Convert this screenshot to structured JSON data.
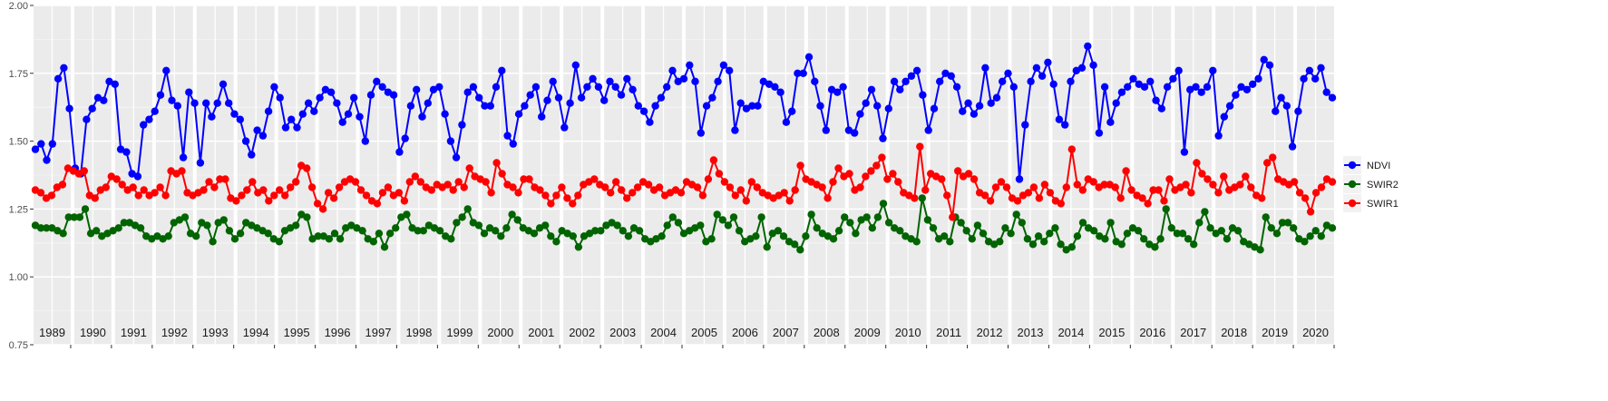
{
  "chart_data": {
    "type": "line",
    "title": "",
    "xlabel": "",
    "ylabel": "",
    "ylim": [
      0.75,
      2.0
    ],
    "yticks": [
      "0.75",
      "1.00",
      "1.25",
      "1.50",
      "1.75",
      "2.00"
    ],
    "years": [
      "1989",
      "1990",
      "1991",
      "1992",
      "1993",
      "1994",
      "1995",
      "1996",
      "1997",
      "1998",
      "1999",
      "2000",
      "2001",
      "2002",
      "2003",
      "2004",
      "2005",
      "2006",
      "2007",
      "2008",
      "2009",
      "2010",
      "2011",
      "2012",
      "2013",
      "2014",
      "2015",
      "2016",
      "2017",
      "2018",
      "2019",
      "2020"
    ],
    "grid": true,
    "legend_position": "right",
    "series": [
      {
        "name": "NDVI",
        "color": "#0000ff",
        "values": [
          1.47,
          1.49,
          1.43,
          1.49,
          1.73,
          1.77,
          1.62,
          1.4,
          1.38,
          1.58,
          1.62,
          1.66,
          1.65,
          1.72,
          1.71,
          1.47,
          1.46,
          1.38,
          1.37,
          1.56,
          1.58,
          1.61,
          1.67,
          1.76,
          1.65,
          1.63,
          1.44,
          1.68,
          1.64,
          1.42,
          1.64,
          1.59,
          1.64,
          1.71,
          1.64,
          1.6,
          1.58,
          1.5,
          1.45,
          1.54,
          1.52,
          1.61,
          1.7,
          1.66,
          1.55,
          1.58,
          1.55,
          1.6,
          1.64,
          1.61,
          1.66,
          1.69,
          1.68,
          1.64,
          1.57,
          1.6,
          1.66,
          1.59,
          1.5,
          1.67,
          1.72,
          1.7,
          1.68,
          1.67,
          1.46,
          1.51,
          1.63,
          1.69,
          1.59,
          1.64,
          1.69,
          1.7,
          1.6,
          1.5,
          1.44,
          1.56,
          1.68,
          1.7,
          1.66,
          1.63,
          1.63,
          1.7,
          1.76,
          1.52,
          1.49,
          1.6,
          1.63,
          1.67,
          1.7,
          1.59,
          1.65,
          1.72,
          1.66,
          1.55,
          1.64,
          1.78,
          1.66,
          1.7,
          1.73,
          1.7,
          1.65,
          1.72,
          1.7,
          1.67,
          1.73,
          1.69,
          1.63,
          1.61,
          1.57,
          1.63,
          1.66,
          1.7,
          1.76,
          1.72,
          1.73,
          1.78,
          1.72,
          1.53,
          1.63,
          1.66,
          1.72,
          1.78,
          1.76,
          1.54,
          1.64,
          1.62,
          1.63,
          1.63,
          1.72,
          1.71,
          1.7,
          1.68,
          1.57,
          1.61,
          1.75,
          1.75,
          1.81,
          1.72,
          1.63,
          1.54,
          1.69,
          1.68,
          1.7,
          1.54,
          1.53,
          1.6,
          1.64,
          1.69,
          1.63,
          1.51,
          1.62,
          1.72,
          1.69,
          1.72,
          1.74,
          1.76,
          1.67,
          1.54,
          1.62,
          1.72,
          1.75,
          1.74,
          1.7,
          1.61,
          1.64,
          1.6,
          1.63,
          1.77,
          1.64,
          1.66,
          1.72,
          1.75,
          1.7,
          1.36,
          1.56,
          1.72,
          1.77,
          1.74,
          1.79,
          1.71,
          1.58,
          1.56,
          1.72,
          1.76,
          1.77,
          1.85,
          1.78,
          1.53,
          1.7,
          1.57,
          1.64,
          1.68,
          1.7,
          1.73,
          1.71,
          1.7,
          1.72,
          1.65,
          1.62,
          1.7,
          1.73,
          1.76,
          1.46,
          1.69,
          1.7,
          1.68,
          1.7,
          1.76,
          1.52,
          1.59,
          1.63,
          1.67,
          1.7,
          1.69,
          1.71,
          1.73,
          1.8,
          1.78,
          1.61,
          1.66,
          1.63,
          1.48,
          1.61,
          1.73,
          1.76,
          1.73,
          1.77,
          1.68,
          1.66
        ]
      },
      {
        "name": "SWIR2",
        "color": "#006400",
        "values": [
          1.19,
          1.18,
          1.18,
          1.18,
          1.17,
          1.16,
          1.22,
          1.22,
          1.22,
          1.25,
          1.16,
          1.17,
          1.15,
          1.16,
          1.17,
          1.18,
          1.2,
          1.2,
          1.19,
          1.18,
          1.15,
          1.14,
          1.15,
          1.14,
          1.15,
          1.2,
          1.21,
          1.22,
          1.16,
          1.15,
          1.2,
          1.19,
          1.13,
          1.2,
          1.21,
          1.17,
          1.14,
          1.16,
          1.2,
          1.19,
          1.18,
          1.17,
          1.16,
          1.14,
          1.13,
          1.17,
          1.18,
          1.19,
          1.23,
          1.22,
          1.14,
          1.15,
          1.15,
          1.14,
          1.16,
          1.14,
          1.18,
          1.19,
          1.18,
          1.17,
          1.14,
          1.13,
          1.16,
          1.11,
          1.16,
          1.18,
          1.22,
          1.23,
          1.18,
          1.17,
          1.17,
          1.19,
          1.18,
          1.17,
          1.15,
          1.14,
          1.2,
          1.22,
          1.25,
          1.2,
          1.19,
          1.16,
          1.18,
          1.17,
          1.15,
          1.18,
          1.23,
          1.21,
          1.18,
          1.17,
          1.16,
          1.18,
          1.19,
          1.15,
          1.13,
          1.17,
          1.16,
          1.15,
          1.11,
          1.15,
          1.16,
          1.17,
          1.17,
          1.19,
          1.2,
          1.19,
          1.17,
          1.15,
          1.18,
          1.17,
          1.14,
          1.13,
          1.14,
          1.15,
          1.19,
          1.22,
          1.2,
          1.16,
          1.17,
          1.18,
          1.19,
          1.13,
          1.14,
          1.23,
          1.21,
          1.19,
          1.22,
          1.17,
          1.13,
          1.14,
          1.15,
          1.22,
          1.11,
          1.16,
          1.17,
          1.15,
          1.13,
          1.12,
          1.1,
          1.15,
          1.23,
          1.18,
          1.16,
          1.15,
          1.14,
          1.17,
          1.22,
          1.2,
          1.16,
          1.21,
          1.22,
          1.18,
          1.22,
          1.27,
          1.2,
          1.18,
          1.17,
          1.15,
          1.14,
          1.13,
          1.29,
          1.21,
          1.18,
          1.14,
          1.15,
          1.13,
          1.22,
          1.2,
          1.17,
          1.14,
          1.19,
          1.16,
          1.13,
          1.12,
          1.13,
          1.18,
          1.16,
          1.23,
          1.2,
          1.14,
          1.12,
          1.15,
          1.13,
          1.16,
          1.18,
          1.12,
          1.1,
          1.11,
          1.15,
          1.2,
          1.18,
          1.17,
          1.15,
          1.14,
          1.2,
          1.13,
          1.12,
          1.16,
          1.18,
          1.17,
          1.14,
          1.12,
          1.11,
          1.14,
          1.25,
          1.18,
          1.16,
          1.16,
          1.14,
          1.12,
          1.2,
          1.24,
          1.18,
          1.16,
          1.17,
          1.14,
          1.18,
          1.17,
          1.13,
          1.12,
          1.11,
          1.1,
          1.22,
          1.18,
          1.16,
          1.2,
          1.2,
          1.18,
          1.14,
          1.13,
          1.15,
          1.17,
          1.15,
          1.19,
          1.18
        ]
      },
      {
        "name": "SWIR1",
        "color": "#ff0000",
        "values": [
          1.32,
          1.31,
          1.29,
          1.3,
          1.33,
          1.34,
          1.4,
          1.39,
          1.38,
          1.39,
          1.3,
          1.29,
          1.32,
          1.33,
          1.37,
          1.36,
          1.34,
          1.32,
          1.33,
          1.3,
          1.32,
          1.3,
          1.31,
          1.33,
          1.3,
          1.39,
          1.38,
          1.39,
          1.31,
          1.3,
          1.31,
          1.32,
          1.35,
          1.33,
          1.36,
          1.36,
          1.29,
          1.28,
          1.3,
          1.32,
          1.35,
          1.31,
          1.32,
          1.28,
          1.3,
          1.32,
          1.3,
          1.33,
          1.35,
          1.41,
          1.4,
          1.33,
          1.27,
          1.25,
          1.31,
          1.29,
          1.33,
          1.35,
          1.36,
          1.35,
          1.32,
          1.3,
          1.28,
          1.27,
          1.31,
          1.33,
          1.3,
          1.31,
          1.28,
          1.35,
          1.37,
          1.35,
          1.33,
          1.32,
          1.34,
          1.33,
          1.34,
          1.32,
          1.35,
          1.33,
          1.4,
          1.37,
          1.36,
          1.35,
          1.31,
          1.42,
          1.38,
          1.34,
          1.33,
          1.31,
          1.36,
          1.36,
          1.33,
          1.32,
          1.3,
          1.27,
          1.3,
          1.33,
          1.29,
          1.27,
          1.3,
          1.34,
          1.35,
          1.36,
          1.34,
          1.33,
          1.31,
          1.35,
          1.32,
          1.29,
          1.31,
          1.33,
          1.35,
          1.34,
          1.32,
          1.33,
          1.3,
          1.31,
          1.32,
          1.31,
          1.35,
          1.34,
          1.33,
          1.3,
          1.36,
          1.43,
          1.38,
          1.35,
          1.33,
          1.3,
          1.32,
          1.28,
          1.35,
          1.33,
          1.31,
          1.3,
          1.29,
          1.3,
          1.31,
          1.28,
          1.32,
          1.41,
          1.36,
          1.35,
          1.34,
          1.33,
          1.29,
          1.35,
          1.4,
          1.37,
          1.38,
          1.32,
          1.33,
          1.37,
          1.39,
          1.41,
          1.44,
          1.36,
          1.38,
          1.35,
          1.31,
          1.3,
          1.29,
          1.48,
          1.32,
          1.38,
          1.37,
          1.36,
          1.3,
          1.22,
          1.39,
          1.37,
          1.38,
          1.36,
          1.31,
          1.3,
          1.28,
          1.33,
          1.35,
          1.33,
          1.29,
          1.28,
          1.3,
          1.31,
          1.33,
          1.29,
          1.34,
          1.31,
          1.28,
          1.27,
          1.33,
          1.47,
          1.34,
          1.32,
          1.36,
          1.35,
          1.33,
          1.34,
          1.34,
          1.33,
          1.29,
          1.39,
          1.32,
          1.3,
          1.29,
          1.27,
          1.32,
          1.32,
          1.28,
          1.36,
          1.32,
          1.33,
          1.34,
          1.31,
          1.42,
          1.38,
          1.36,
          1.34,
          1.31,
          1.37,
          1.32,
          1.33,
          1.34,
          1.37,
          1.33,
          1.3,
          1.29,
          1.42,
          1.44,
          1.36,
          1.35,
          1.34,
          1.35,
          1.31,
          1.29,
          1.24,
          1.31,
          1.33,
          1.36,
          1.35
        ]
      }
    ]
  }
}
